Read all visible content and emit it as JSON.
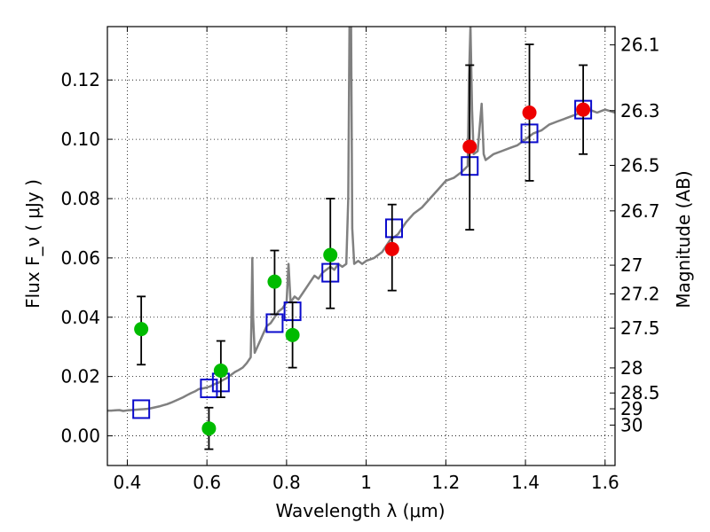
{
  "chart_data": {
    "type": "scatter",
    "title": "",
    "xlabel": "Wavelength  λ (μm)",
    "ylabel": "Flux  F_ν  ( μJy )",
    "ylabel_right": "Magnitude (AB)",
    "xlim": [
      0.35,
      1.625
    ],
    "ylim": [
      -0.01,
      0.138
    ],
    "grid": true,
    "x_ticks": [
      {
        "value": 0.4,
        "label": "0.4"
      },
      {
        "value": 0.6,
        "label": "0.6"
      },
      {
        "value": 0.8,
        "label": "0.8"
      },
      {
        "value": 1.0,
        "label": "1"
      },
      {
        "value": 1.2,
        "label": "1.2"
      },
      {
        "value": 1.4,
        "label": "1.4"
      },
      {
        "value": 1.6,
        "label": "1.6"
      }
    ],
    "y_ticks": [
      {
        "value": 0.0,
        "label": "0.00"
      },
      {
        "value": 0.02,
        "label": "0.02"
      },
      {
        "value": 0.04,
        "label": "0.04"
      },
      {
        "value": 0.06,
        "label": "0.06"
      },
      {
        "value": 0.08,
        "label": "0.08"
      },
      {
        "value": 0.1,
        "label": "0.10"
      },
      {
        "value": 0.12,
        "label": "0.12"
      }
    ],
    "right_ticks": [
      {
        "mag": 26.1,
        "label": "26.1"
      },
      {
        "mag": 26.3,
        "label": "26.3"
      },
      {
        "mag": 26.5,
        "label": "26.5"
      },
      {
        "mag": 26.7,
        "label": "26.7"
      },
      {
        "mag": 27.0,
        "label": "27"
      },
      {
        "mag": 27.2,
        "label": "27.2"
      },
      {
        "mag": 27.5,
        "label": "27.5"
      },
      {
        "mag": 28.0,
        "label": "28"
      },
      {
        "mag": 28.5,
        "label": "28.5"
      },
      {
        "mag": 29.0,
        "label": "29"
      },
      {
        "mag": 30.0,
        "label": "30"
      }
    ],
    "series": [
      {
        "color": "#808080",
        "kind": "line",
        "points": [
          [
            0.35,
            0.0085
          ],
          [
            0.36,
            0.0085
          ],
          [
            0.37,
            0.0086
          ],
          [
            0.38,
            0.0087
          ],
          [
            0.39,
            0.0084
          ],
          [
            0.4,
            0.0086
          ],
          [
            0.41,
            0.0087
          ],
          [
            0.42,
            0.0088
          ],
          [
            0.43,
            0.0089
          ],
          [
            0.44,
            0.009
          ],
          [
            0.45,
            0.0091
          ],
          [
            0.46,
            0.0093
          ],
          [
            0.47,
            0.0096
          ],
          [
            0.48,
            0.0099
          ],
          [
            0.49,
            0.0103
          ],
          [
            0.5,
            0.0107
          ],
          [
            0.51,
            0.0112
          ],
          [
            0.52,
            0.0118
          ],
          [
            0.53,
            0.0124
          ],
          [
            0.54,
            0.013
          ],
          [
            0.55,
            0.0137
          ],
          [
            0.56,
            0.0144
          ],
          [
            0.57,
            0.015
          ],
          [
            0.58,
            0.0158
          ],
          [
            0.59,
            0.016
          ],
          [
            0.6,
            0.0163
          ],
          [
            0.61,
            0.0168
          ],
          [
            0.62,
            0.0175
          ],
          [
            0.63,
            0.018
          ],
          [
            0.64,
            0.0188
          ],
          [
            0.65,
            0.0195
          ],
          [
            0.66,
            0.0205
          ],
          [
            0.67,
            0.0215
          ],
          [
            0.68,
            0.0222
          ],
          [
            0.69,
            0.023
          ],
          [
            0.7,
            0.0245
          ],
          [
            0.71,
            0.0265
          ],
          [
            0.712,
            0.04
          ],
          [
            0.714,
            0.06
          ],
          [
            0.716,
            0.04
          ],
          [
            0.72,
            0.028
          ],
          [
            0.73,
            0.031
          ],
          [
            0.74,
            0.034
          ],
          [
            0.75,
            0.037
          ],
          [
            0.76,
            0.038
          ],
          [
            0.77,
            0.04
          ],
          [
            0.78,
            0.042
          ],
          [
            0.79,
            0.043
          ],
          [
            0.8,
            0.045
          ],
          [
            0.805,
            0.058
          ],
          [
            0.81,
            0.045
          ],
          [
            0.82,
            0.047
          ],
          [
            0.83,
            0.046
          ],
          [
            0.84,
            0.048
          ],
          [
            0.85,
            0.05
          ],
          [
            0.86,
            0.052
          ],
          [
            0.87,
            0.054
          ],
          [
            0.88,
            0.053
          ],
          [
            0.89,
            0.055
          ],
          [
            0.9,
            0.056
          ],
          [
            0.91,
            0.057
          ],
          [
            0.92,
            0.056
          ],
          [
            0.93,
            0.058
          ],
          [
            0.94,
            0.057
          ],
          [
            0.95,
            0.058
          ],
          [
            0.955,
            0.08
          ],
          [
            0.958,
            0.138
          ],
          [
            0.962,
            0.138
          ],
          [
            0.965,
            0.07
          ],
          [
            0.97,
            0.058
          ],
          [
            0.98,
            0.059
          ],
          [
            0.99,
            0.058
          ],
          [
            1.0,
            0.059
          ],
          [
            1.02,
            0.06
          ],
          [
            1.04,
            0.062
          ],
          [
            1.06,
            0.066
          ],
          [
            1.08,
            0.068
          ],
          [
            1.1,
            0.072
          ],
          [
            1.12,
            0.075
          ],
          [
            1.14,
            0.077
          ],
          [
            1.16,
            0.08
          ],
          [
            1.18,
            0.083
          ],
          [
            1.2,
            0.086
          ],
          [
            1.22,
            0.087
          ],
          [
            1.24,
            0.089
          ],
          [
            1.255,
            0.091
          ],
          [
            1.258,
            0.12
          ],
          [
            1.262,
            0.138
          ],
          [
            1.266,
            0.11
          ],
          [
            1.27,
            0.095
          ],
          [
            1.28,
            0.096
          ],
          [
            1.29,
            0.112
          ],
          [
            1.295,
            0.095
          ],
          [
            1.3,
            0.093
          ],
          [
            1.32,
            0.095
          ],
          [
            1.34,
            0.096
          ],
          [
            1.36,
            0.097
          ],
          [
            1.38,
            0.098
          ],
          [
            1.4,
            0.1
          ],
          [
            1.42,
            0.102
          ],
          [
            1.44,
            0.103
          ],
          [
            1.46,
            0.105
          ],
          [
            1.48,
            0.106
          ],
          [
            1.5,
            0.107
          ],
          [
            1.52,
            0.108
          ],
          [
            1.54,
            0.109
          ],
          [
            1.56,
            0.11
          ],
          [
            1.58,
            0.109
          ],
          [
            1.6,
            0.11
          ],
          [
            1.625,
            0.109
          ]
        ]
      },
      {
        "color": "#0b0bcc",
        "kind": "open-square",
        "points": [
          [
            0.435,
            0.009
          ],
          [
            0.605,
            0.016
          ],
          [
            0.635,
            0.018
          ],
          [
            0.77,
            0.038
          ],
          [
            0.815,
            0.042
          ],
          [
            0.91,
            0.055
          ],
          [
            1.07,
            0.07
          ],
          [
            1.26,
            0.091
          ],
          [
            1.41,
            0.102
          ],
          [
            1.545,
            0.11
          ]
        ]
      },
      {
        "color": "#00bb00",
        "kind": "filled-circle",
        "points": [
          {
            "x": 0.435,
            "y": 0.036,
            "yerr_low": 0.024,
            "yerr_high": 0.047
          },
          {
            "x": 0.605,
            "y": 0.0025,
            "yerr_low": -0.0045,
            "yerr_high": 0.0095
          },
          {
            "x": 0.635,
            "y": 0.022,
            "yerr_low": 0.013,
            "yerr_high": 0.032
          },
          {
            "x": 0.77,
            "y": 0.052,
            "yerr_low": 0.041,
            "yerr_high": 0.0625
          },
          {
            "x": 0.815,
            "y": 0.034,
            "yerr_low": 0.023,
            "yerr_high": 0.045
          },
          {
            "x": 0.91,
            "y": 0.061,
            "yerr_low": 0.043,
            "yerr_high": 0.08
          }
        ]
      },
      {
        "color": "#ee0000",
        "kind": "filled-circle",
        "points": [
          {
            "x": 1.065,
            "y": 0.063,
            "yerr_low": 0.049,
            "yerr_high": 0.078
          },
          {
            "x": 1.26,
            "y": 0.0975,
            "yerr_low": 0.0695,
            "yerr_high": 0.125
          },
          {
            "x": 1.41,
            "y": 0.109,
            "yerr_low": 0.086,
            "yerr_high": 0.132
          },
          {
            "x": 1.545,
            "y": 0.11,
            "yerr_low": 0.095,
            "yerr_high": 0.125
          }
        ]
      }
    ]
  }
}
